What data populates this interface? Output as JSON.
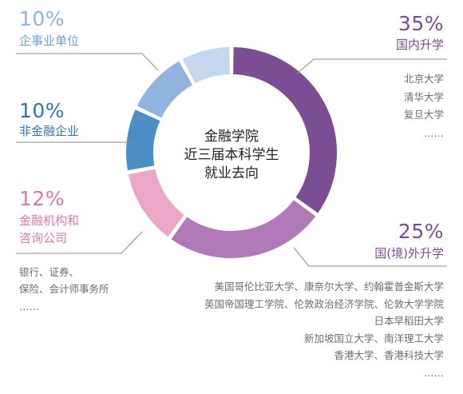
{
  "chart_data": {
    "type": "pie",
    "donut": true,
    "center_title": [
      "金融学院",
      "近三届本科学生",
      "就业去向"
    ],
    "slices": [
      {
        "label": "国内升学",
        "percent_label": "35%",
        "value": 35,
        "color": "#7a4d94",
        "examples": [
          "北京大学",
          "清华大学",
          "复旦大学",
          "……"
        ]
      },
      {
        "label": "国(境)外升学",
        "percent_label": "25%",
        "value": 25,
        "color": "#b07ab8",
        "examples": [
          "美国哥伦比亚大学、康奈尔大学、约翰霍普金斯大学",
          "英国帝国理工学院、伦敦政治经济学院、伦敦大学学院",
          "日本早稻田大学",
          "新加坡国立大学、南洋理工大学",
          "香港大学、香港科技大学",
          "……"
        ]
      },
      {
        "label": "金融机构和咨询公司",
        "label_lines": [
          "金融机构和",
          "咨询公司"
        ],
        "percent_label": "12%",
        "value": 12,
        "color": "#eaa8c6",
        "examples": [
          "银行、证券、",
          "保险、会计师事务所",
          "……"
        ]
      },
      {
        "label": "非金融企业",
        "percent_label": "10%",
        "value": 10,
        "color": "#4a8ec4",
        "examples": []
      },
      {
        "label": "企事业单位",
        "percent_label": "10%",
        "value": 10,
        "color": "#8fb4e0",
        "examples": []
      },
      {
        "label": "",
        "percent_label": "",
        "value": 8,
        "color": "#c5d6ef",
        "examples": []
      }
    ],
    "text_colors": {
      "domestic": "#7a4d94",
      "abroad": "#7a4d94",
      "finance": "#e07aa4",
      "nonfinance": "#2f76b5",
      "enterprise": "#6ea3d8"
    }
  }
}
